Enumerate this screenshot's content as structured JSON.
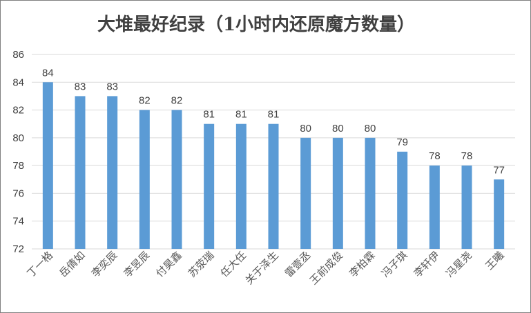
{
  "chart_data": {
    "type": "bar",
    "title": "大堆最好纪录（1小时内还原魔方数量）",
    "categories": [
      "丁一格",
      "岳倩如",
      "李奕辰",
      "李昱辰",
      "付昊鑫",
      "苏荥瑞",
      "任大任",
      "关于泽生",
      "雷壹丞",
      "王前成俊",
      "李柏霖",
      "冯子琪",
      "李轩伊",
      "冯星尧",
      "王曦"
    ],
    "values": [
      84,
      83,
      83,
      82,
      82,
      81,
      81,
      81,
      80,
      80,
      80,
      79,
      78,
      78,
      77
    ],
    "ylim": [
      72,
      86
    ],
    "yticks": [
      72,
      74,
      76,
      78,
      80,
      82,
      84,
      86
    ],
    "grid": true,
    "bar_color": "#5b9bd5",
    "show_data_labels": true
  }
}
